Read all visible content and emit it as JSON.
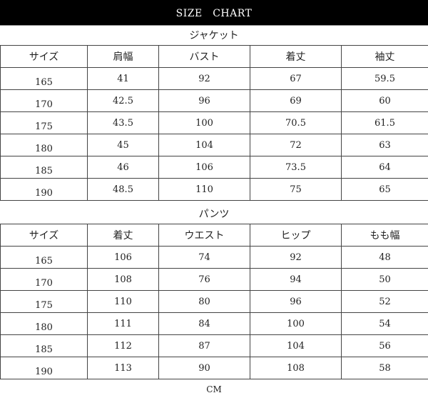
{
  "title": "SIZE　CHART",
  "jacket": {
    "label": "ジャケット",
    "headers": [
      "サイズ",
      "肩幅",
      "バスト",
      "着丈",
      "袖丈"
    ],
    "rows": [
      [
        "165",
        "41",
        "92",
        "67",
        "59.5"
      ],
      [
        "170",
        "42.5",
        "96",
        "69",
        "60"
      ],
      [
        "175",
        "43.5",
        "100",
        "70.5",
        "61.5"
      ],
      [
        "180",
        "45",
        "104",
        "72",
        "63"
      ],
      [
        "185",
        "46",
        "106",
        "73.5",
        "64"
      ],
      [
        "190",
        "48.5",
        "110",
        "75",
        "65"
      ]
    ]
  },
  "pants": {
    "label": "パンツ",
    "headers": [
      "サイズ",
      "着丈",
      "ウエスト",
      "ヒップ",
      "もも幅"
    ],
    "rows": [
      [
        "165",
        "106",
        "74",
        "92",
        "48"
      ],
      [
        "170",
        "108",
        "76",
        "94",
        "50"
      ],
      [
        "175",
        "110",
        "80",
        "96",
        "52"
      ],
      [
        "180",
        "111",
        "84",
        "100",
        "54"
      ],
      [
        "185",
        "112",
        "87",
        "104",
        "56"
      ],
      [
        "190",
        "113",
        "90",
        "108",
        "58"
      ]
    ]
  },
  "unit": "CM"
}
